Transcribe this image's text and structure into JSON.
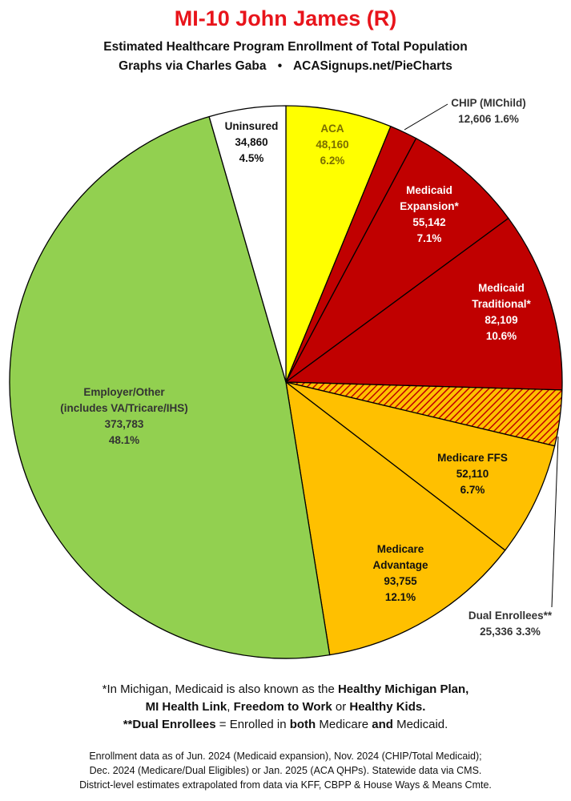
{
  "header": {
    "title": "MI-10 John James (R)",
    "subtitle": "Estimated Healthcare Program Enrollment of Total Population",
    "credit": "Graphs via Charles Gaba",
    "bullet": "•",
    "site": "ACASignups.net/PieCharts"
  },
  "chart_data": {
    "type": "pie",
    "title": "MI-10 John James (R)",
    "subtitle": "Estimated Healthcare Program Enrollment of Total Population",
    "start": "12 o'clock, clockwise",
    "slices": [
      {
        "key": "aca",
        "lines": [
          "ACA"
        ],
        "value": 48160,
        "value_text": "48,160",
        "pct": 6.2,
        "pct_text": "6.2%",
        "color": "#ffff00",
        "text_color": "#7a6e00",
        "hatch": false
      },
      {
        "key": "chip",
        "lines": [
          "CHIP (MIChild)"
        ],
        "value": 12606,
        "value_text": "12,606",
        "pct": 1.6,
        "pct_text": "1.6%",
        "color": "#c00000",
        "text_color": "#333333",
        "hatch": false,
        "external": true
      },
      {
        "key": "medicaid-expansion",
        "lines": [
          "Medicaid",
          "Expansion*"
        ],
        "value": 55142,
        "value_text": "55,142",
        "pct": 7.1,
        "pct_text": "7.1%",
        "color": "#c00000",
        "text_color": "#ffffff",
        "hatch": false
      },
      {
        "key": "medicaid-traditional",
        "lines": [
          "Medicaid",
          "Traditional*"
        ],
        "value": 82109,
        "value_text": "82,109",
        "pct": 10.6,
        "pct_text": "10.6%",
        "color": "#c00000",
        "text_color": "#ffffff",
        "hatch": false
      },
      {
        "key": "dual-enrollees",
        "lines": [
          "Dual Enrollees**"
        ],
        "value": 25336,
        "value_text": "25,336",
        "pct": 3.3,
        "pct_text": "3.3%",
        "color": "#ffc000",
        "text_color": "#333333",
        "hatch": true,
        "external": true
      },
      {
        "key": "medicare-ffs",
        "lines": [
          "Medicare FFS"
        ],
        "value": 52110,
        "value_text": "52,110",
        "pct": 6.7,
        "pct_text": "6.7%",
        "color": "#ffc000",
        "text_color": "#111111",
        "hatch": false
      },
      {
        "key": "medicare-advantage",
        "lines": [
          "Medicare",
          "Advantage"
        ],
        "value": 93755,
        "value_text": "93,755",
        "pct": 12.1,
        "pct_text": "12.1%",
        "color": "#ffc000",
        "text_color": "#111111",
        "hatch": false
      },
      {
        "key": "employer-other",
        "lines": [
          "Employer/Other",
          "(includes VA/Tricare/IHS)"
        ],
        "value": 373783,
        "value_text": "373,783",
        "pct": 48.1,
        "pct_text": "48.1%",
        "color": "#92d050",
        "text_color": "#333333",
        "hatch": false
      },
      {
        "key": "uninsured",
        "lines": [
          "Uninsured"
        ],
        "value": 34860,
        "value_text": "34,860",
        "pct": 4.5,
        "pct_text": "4.5%",
        "color": "#ffffff",
        "text_color": "#111111",
        "hatch": false
      }
    ]
  },
  "notes": {
    "line1_pre": "*In Michigan, Medicaid is also known as the ",
    "line1_bold": "Healthy Michigan Plan,",
    "line2_a": "MI Health Link",
    "line2_b": ", ",
    "line2_c": "Freedom to Work",
    "line2_d": " or ",
    "line2_e": "Healthy Kids.",
    "line3_a": "**Dual Enrollees",
    "line3_b": " = Enrolled in ",
    "line3_c": "both",
    "line3_d": " Medicare ",
    "line3_e": "and",
    "line3_f": " Medicaid."
  },
  "footer": {
    "line1": "Enrollment data as of Jun. 2024 (Medicaid expansion), Nov. 2024 (CHIP/Total Medicaid);",
    "line2": "Dec. 2024 (Medicare/Dual Eligibles) or Jan. 2025 (ACA QHPs). Statewide data via CMS.",
    "line3": "District-level estimates extrapolated from data via KFF, CBPP & House Ways & Means Cmte."
  }
}
